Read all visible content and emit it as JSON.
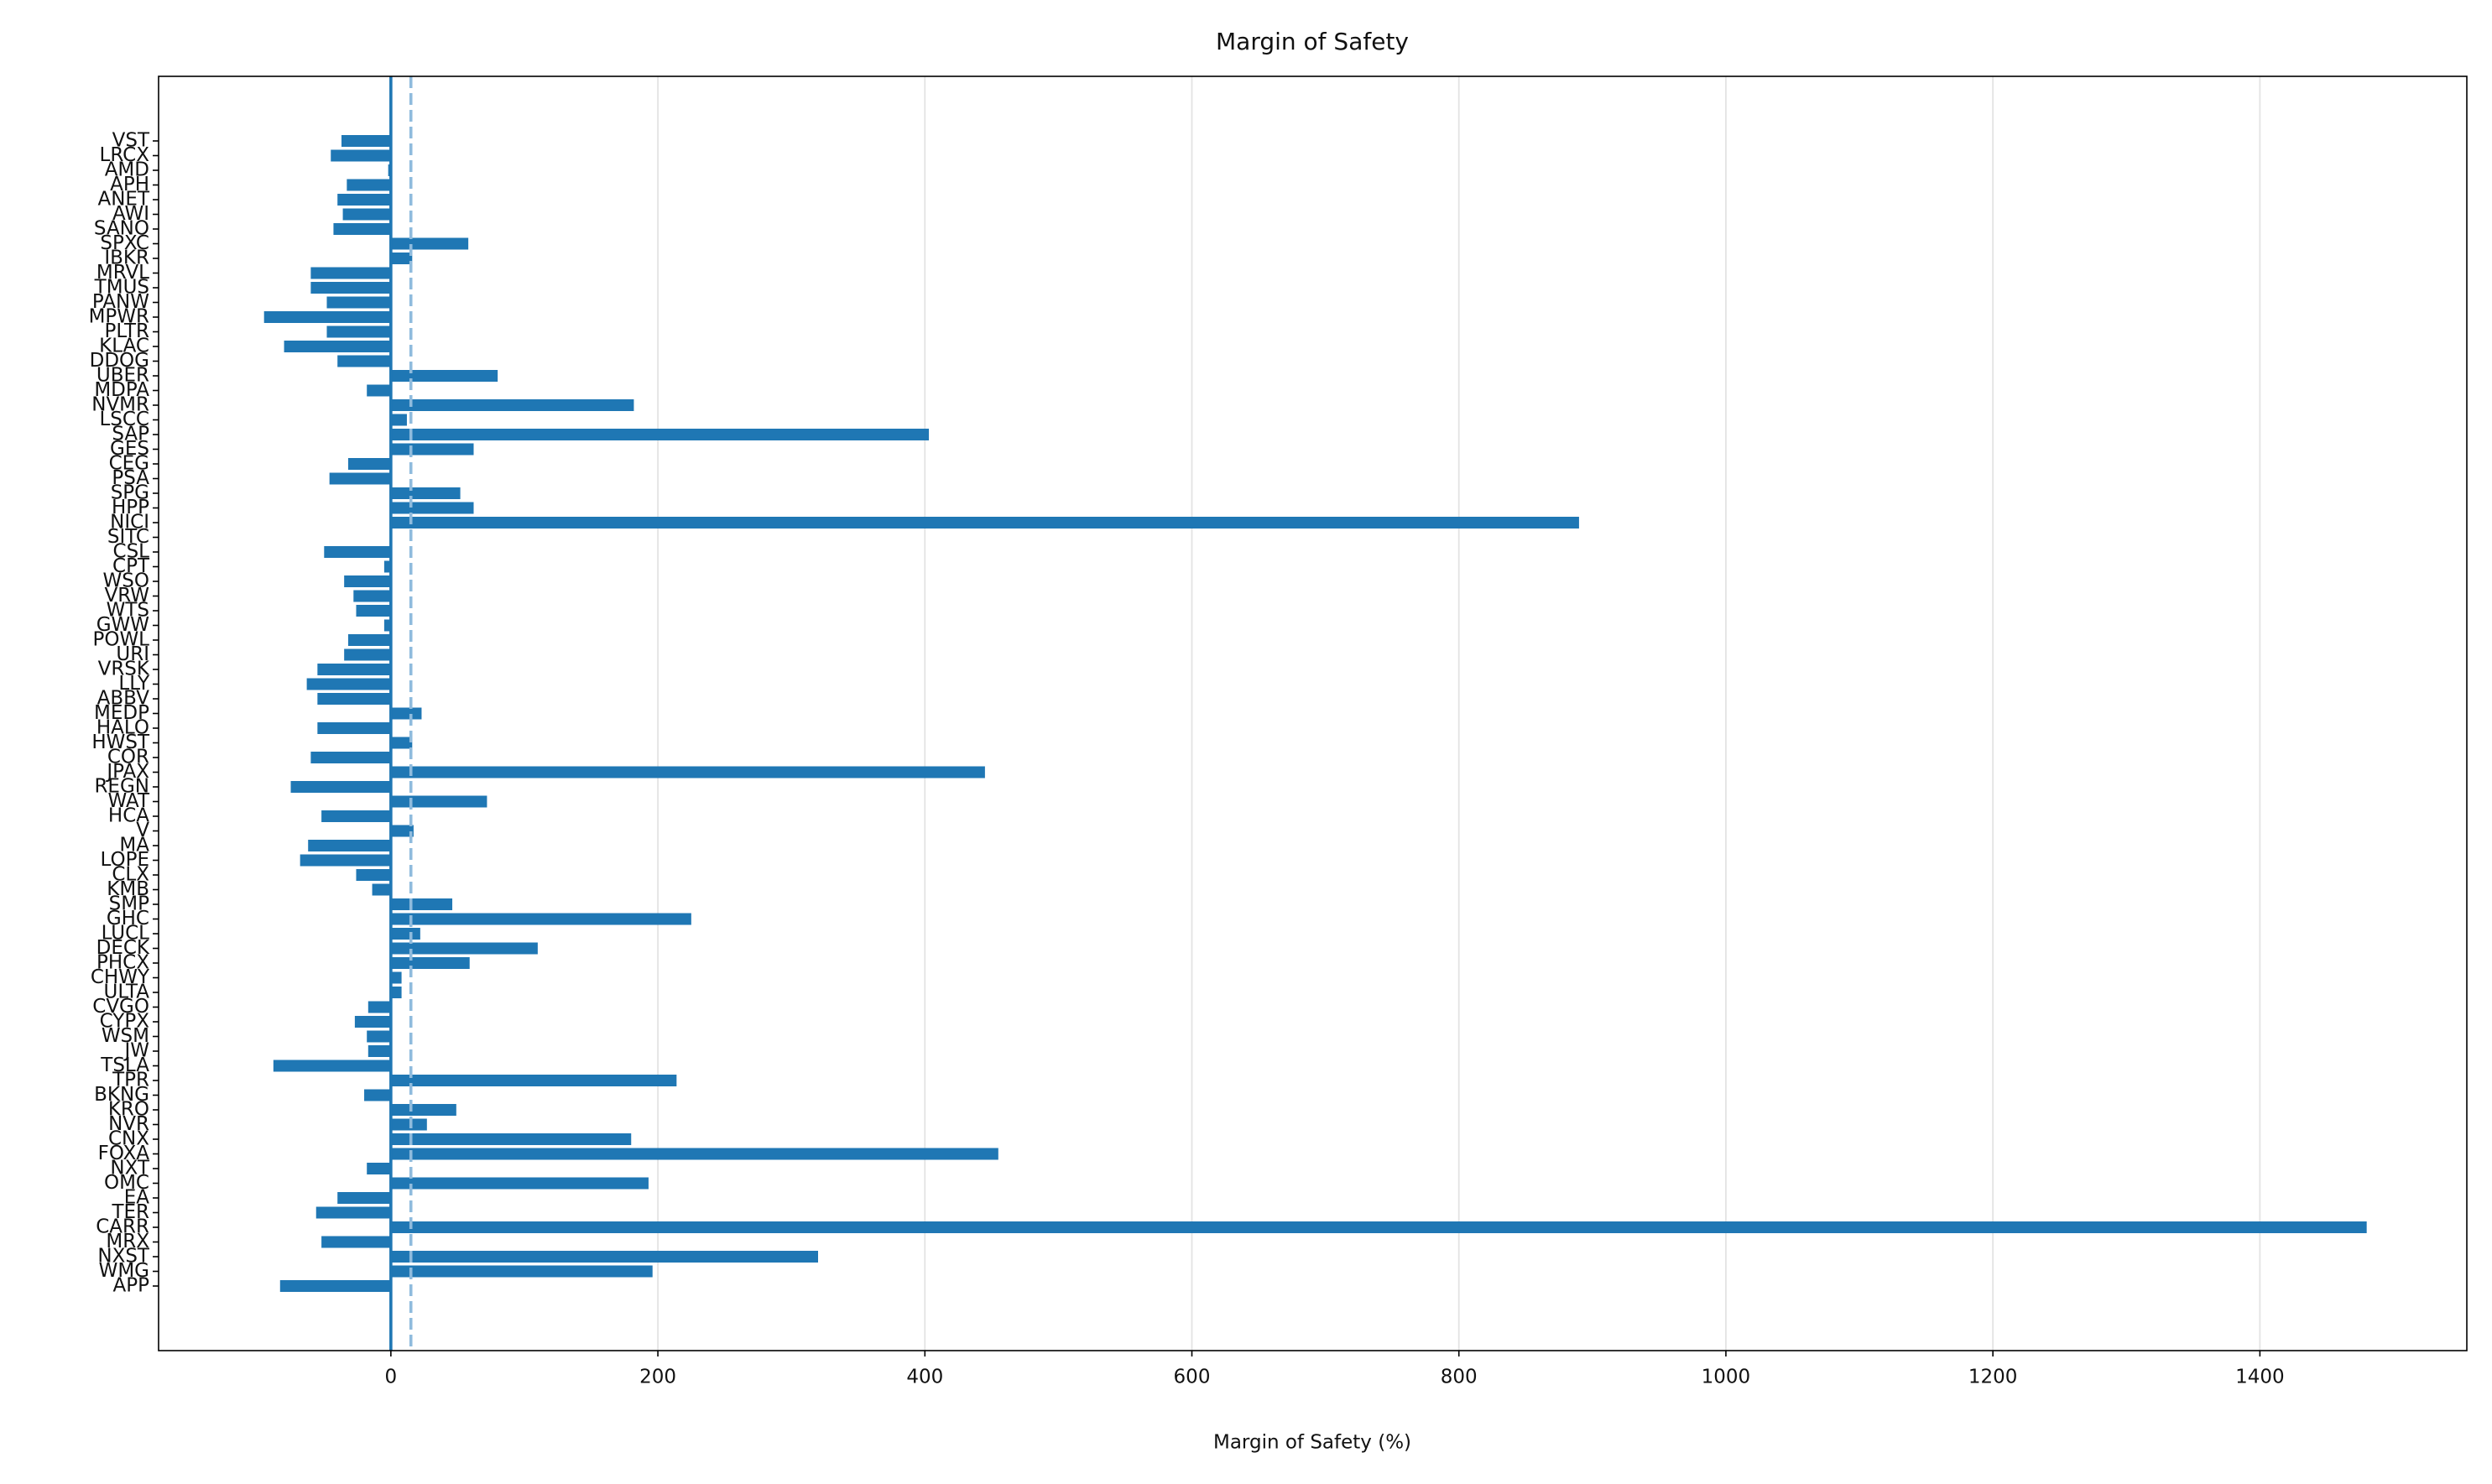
{
  "chart_data": {
    "type": "barh",
    "title": "Margin of Safety",
    "x_label": "Margin of Safety (%)",
    "categories": [
      "VST",
      "LRCX",
      "AMD",
      "APH",
      "ANET",
      "AWI",
      "SANO",
      "SPXC",
      "IBKR",
      "MRVL",
      "TMUS",
      "PANW",
      "MPWR",
      "PLTR",
      "KLAC",
      "DDOG",
      "UBER",
      "MDPA",
      "NVMR",
      "LSCC",
      "SAP",
      "GES",
      "CEG",
      "PSA",
      "SPG",
      "HPP",
      "NICI",
      "SITC",
      "CSL",
      "CPT",
      "WSO",
      "VRW",
      "WTS",
      "GWW",
      "POWL",
      "URI",
      "VRSK",
      "LLY",
      "ABBV",
      "MEDP",
      "HALO",
      "HWST",
      "COR",
      "JPAX",
      "REGN",
      "WAT",
      "HCA",
      "V",
      "MA",
      "LOPE",
      "CLX",
      "KMB",
      "SMP",
      "GHC",
      "LUCL",
      "DECK",
      "PHCX",
      "CHWY",
      "ULTA",
      "CVGO",
      "CYPX",
      "WSM",
      "JW",
      "TSLA",
      "TPR",
      "BKNG",
      "KRO",
      "NVR",
      "CNX",
      "FOXA",
      "NXT",
      "OMC",
      "EA",
      "TER",
      "CARR",
      "MRX",
      "NXST",
      "WMG",
      "APP"
    ],
    "values": [
      -37,
      -45,
      -2,
      -33,
      -40,
      -36,
      -43,
      58,
      16,
      -60,
      -60,
      -48,
      -95,
      -48,
      -80,
      -40,
      80,
      -18,
      182,
      12,
      403,
      62,
      -32,
      -46,
      52,
      62,
      890,
      0,
      -50,
      -5,
      -35,
      -28,
      -26,
      -5,
      -32,
      -35,
      -55,
      -63,
      -55,
      23,
      -55,
      16,
      -60,
      445,
      -75,
      72,
      -52,
      17,
      -62,
      -68,
      -26,
      -14,
      46,
      225,
      22,
      110,
      59,
      8,
      8,
      -17,
      -27,
      -18,
      -17,
      -88,
      214,
      -20,
      49,
      27,
      180,
      455,
      -18,
      193,
      -40,
      -56,
      1480,
      -52,
      320,
      196,
      -83
    ],
    "color": "#1f77b4",
    "xlim": [
      -174,
      1555
    ],
    "xticks": [
      0,
      200,
      400,
      600,
      800,
      1000,
      1200,
      1400
    ],
    "grid": true,
    "vlines": [
      {
        "value": 0,
        "style": "solid",
        "color": "#1f77b4"
      },
      {
        "value": 15,
        "style": "dashed",
        "color": "#8fbbdd"
      }
    ]
  }
}
